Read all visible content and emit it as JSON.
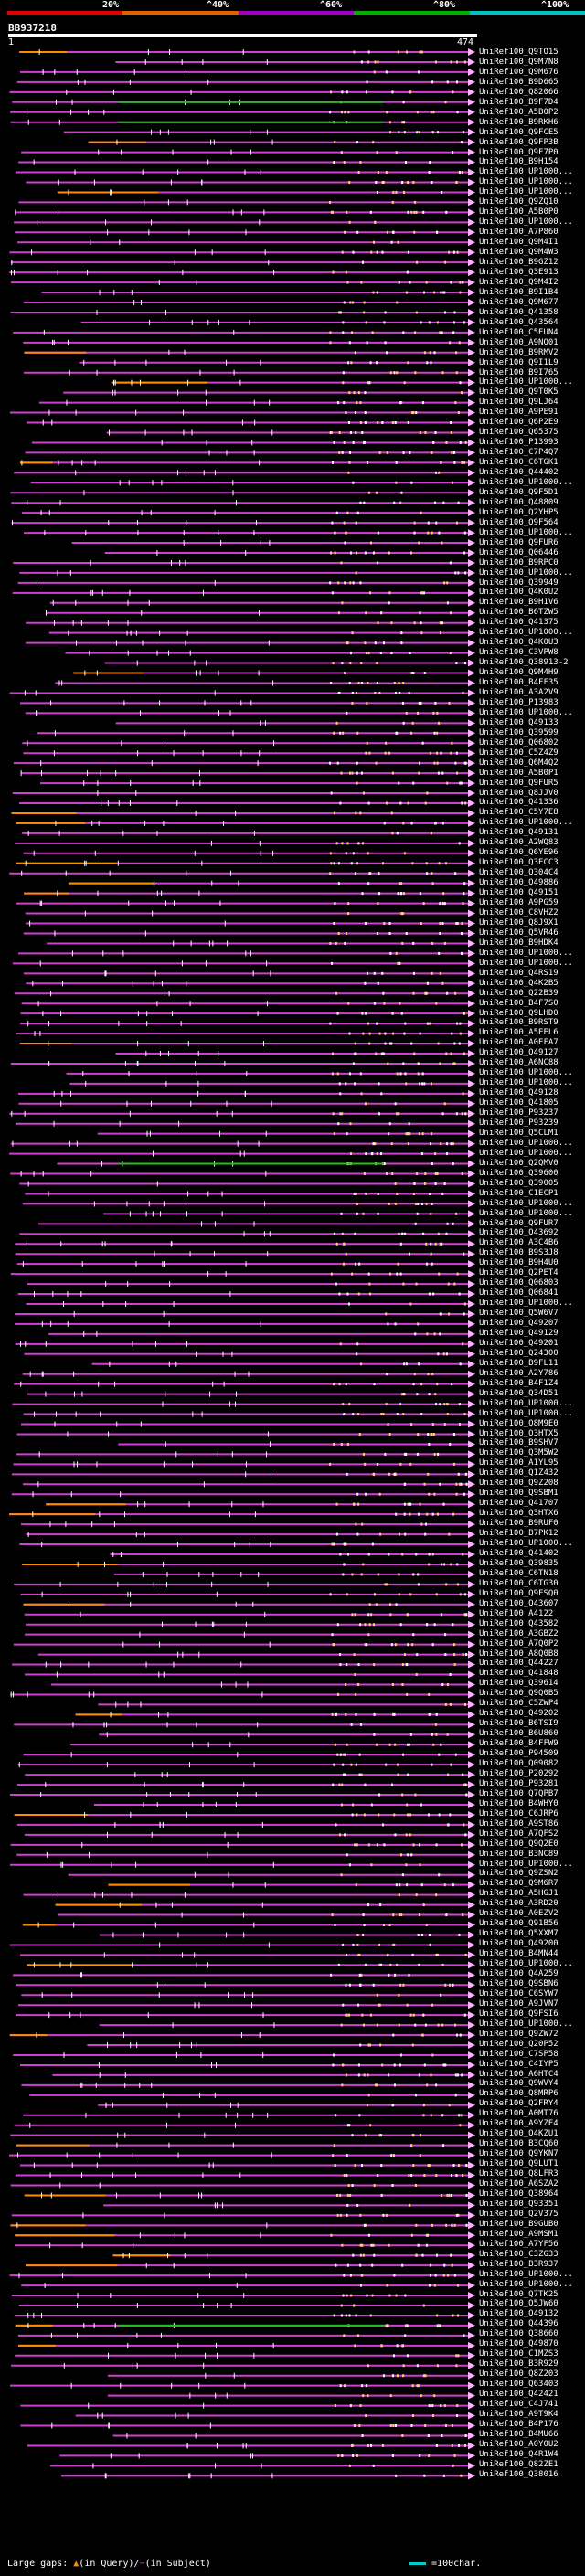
{
  "scale": {
    "colors": [
      "#e00000",
      "#e06000",
      "#a000c0",
      "#00b000",
      "#00c0c0"
    ],
    "labels": [
      "20%",
      "^40%",
      "^60%",
      "^80%",
      "^100%"
    ]
  },
  "query": {
    "id": "BB937218",
    "start": "1",
    "end": "474"
  },
  "hit_colors": {
    "hit": "#d040d0",
    "gap": "#ff8c00",
    "good": "#20c020",
    "mismatch": "#ffd080",
    "arrow": "#ffb0ff"
  },
  "hits": [
    "UniRef100_Q9TO15",
    "UniRef100_Q9M7N8",
    "UniRef100_Q9M676",
    "UniRef100_B9D665",
    "UniRef100_Q82066",
    "UniRef100_B9F7D4",
    "UniRef100_A5B0P2",
    "UniRef100_B9RKH6",
    "UniRef100_Q9FCE5",
    "UniRef100_Q9FP3B",
    "UniRef100_Q9F7P0",
    "UniRef100_B9H154",
    "UniRef100_UP1000...",
    "UniRef100_UP1000...",
    "UniRef100_UP1000...",
    "UniRef100_Q9ZQ10",
    "UniRef100_A5B0P0",
    "UniRef100_UP1000...",
    "UniRef100_A7P860",
    "UniRef100_Q9M4I1",
    "UniRef100_Q9M4W3",
    "UniRef100_B9GZ12",
    "UniRef100_Q3E913",
    "UniRef100_Q9M4I2",
    "UniRef100_B9I1B4",
    "UniRef100_Q9M677",
    "UniRef100_Q41358",
    "UniRef100_Q43564",
    "UniRef100_C5EUN4",
    "UniRef100_A9NQ01",
    "UniRef100_B9RMV2",
    "UniRef100_Q9I1L9",
    "UniRef100_B9I765",
    "UniRef100_UP1000...",
    "UniRef100_Q9T0K5",
    "UniRef100_Q9LJ64",
    "UniRef100_A9PE91",
    "UniRef100_Q6P2E9",
    "UniRef100_Q65375",
    "UniRef100_P13993",
    "UniRef100_C7P4Q7",
    "UniRef100_C6TGK1",
    "UniRef100_Q44402",
    "UniRef100_UP1000...",
    "UniRef100_Q9F5D1",
    "UniRef100_Q48809",
    "UniRef100_Q2YHP5",
    "UniRef100_Q9F564",
    "UniRef100_UP1000...",
    "UniRef100_Q9FUR6",
    "UniRef100_Q06446",
    "UniRef100_B9RPC0",
    "UniRef100_UP1000...",
    "UniRef100_Q39949",
    "UniRef100_Q4K0U2",
    "UniRef100_B9H1V6",
    "UniRef100_B6TZW5",
    "UniRef100_Q41375",
    "UniRef100_UP1000...",
    "UniRef100_Q4K0U3",
    "UniRef100_C3VPW8",
    "UniRef100_Q38913-2",
    "UniRef100_Q9M4H9",
    "UniRef100_B4FF35",
    "UniRef100_A3A2V9",
    "UniRef100_P13983",
    "UniRef100_UP1000...",
    "UniRef100_Q49133",
    "UniRef100_Q39599",
    "UniRef100_Q06802",
    "UniRef100_C5Z4Z9",
    "UniRef100_Q6M4Q2",
    "UniRef100_A5B0P1",
    "UniRef100_Q9FUR5",
    "UniRef100_Q8JJV0",
    "UniRef100_Q41336",
    "UniRef100_C5Y7E8",
    "UniRef100_UP1000...",
    "UniRef100_Q49131",
    "UniRef100_A2WQ83",
    "UniRef100_Q6YE96",
    "UniRef100_Q3ECC3",
    "UniRef100_Q304C4",
    "UniRef100_Q49886",
    "UniRef100_Q49151",
    "UniRef100_A9PG59",
    "UniRef100_C8VHZ2",
    "UniRef100_Q8J9X1",
    "UniRef100_Q5VR46",
    "UniRef100_B9HDK4",
    "UniRef100_UP1000...",
    "UniRef100_UP1000...",
    "UniRef100_Q4RS19",
    "UniRef100_Q4K2B5",
    "UniRef100_Q22B39",
    "UniRef100_B4F7S0",
    "UniRef100_Q9LHD0",
    "UniRef100_B9RST9",
    "UniRef100_A5EEL6",
    "UniRef100_A0EFA7",
    "UniRef100_Q49127",
    "UniRef100_A6NC88",
    "UniRef100_UP1000...",
    "UniRef100_UP1000...",
    "UniRef100_Q49128",
    "UniRef100_Q41805",
    "UniRef100_P93237",
    "UniRef100_P93239",
    "UniRef100_Q5CLM1",
    "UniRef100_UP1000...",
    "UniRef100_UP1000...",
    "UniRef100_Q2QMV0",
    "UniRef100_Q39600",
    "UniRef100_Q39005",
    "UniRef100_C1ECP1",
    "UniRef100_UP1000...",
    "UniRef100_UP1000...",
    "UniRef100_Q9FUR7",
    "UniRef100_Q43692",
    "UniRef100_A3C4B6",
    "UniRef100_B9S3J8",
    "UniRef100_B9H4U0",
    "UniRef100_Q2PET4",
    "UniRef100_Q06803",
    "UniRef100_Q06841",
    "UniRef100_UP1000...",
    "UniRef100_Q5W6V7",
    "UniRef100_Q49207",
    "UniRef100_Q49129",
    "UniRef100_Q49201",
    "UniRef100_Q24300",
    "UniRef100_B9FL11",
    "UniRef100_A2Y786",
    "UniRef100_B4F1Z4",
    "UniRef100_Q34D51",
    "UniRef100_UP1000...",
    "UniRef100_UP1000...",
    "UniRef100_Q8M9E0",
    "UniRef100_Q3HTX5",
    "UniRef100_B9SHV7",
    "UniRef100_Q3M5W2",
    "UniRef100_A1YL95",
    "UniRef100_Q1Z432",
    "UniRef100_Q9Z208",
    "UniRef100_Q9SBM1",
    "UniRef100_Q41707",
    "UniRef100_Q3HTX6",
    "UniRef100_B9RUF0",
    "UniRef100_B7PK12",
    "UniRef100_UP1000...",
    "UniRef100_Q41402",
    "UniRef100_Q39835",
    "UniRef100_C6TN18",
    "UniRef100_C6TG30",
    "UniRef100_Q9FSQ0",
    "UniRef100_Q43607",
    "UniRef100_A4122",
    "UniRef100_Q43582",
    "UniRef100_A3GBZ2",
    "UniRef100_A7Q0P2",
    "UniRef100_A8Q0B8",
    "UniRef100_Q44227",
    "UniRef100_Q41848",
    "UniRef100_Q39614",
    "UniRef100_Q9Q0B5",
    "UniRef100_C5ZWP4",
    "UniRef100_Q49202",
    "UniRef100_B6TSI9",
    "UniRef100_B6U860",
    "UniRef100_B4FFW9",
    "UniRef100_P94509",
    "UniRef100_Q09082",
    "UniRef100_P20292",
    "UniRef100_P93281",
    "UniRef100_Q7QPB7",
    "UniRef100_B4WHY0",
    "UniRef100_C6JRP6",
    "UniRef100_A9ST86",
    "UniRef100_A7QFS2",
    "UniRef100_Q9Q2E0",
    "UniRef100_B3NC89",
    "UniRef100_UP1000...",
    "UniRef100_Q9ZSN2",
    "UniRef100_Q9M6R7",
    "UniRef100_A5HGJ1",
    "UniRef100_A3RD20",
    "UniRef100_A0EZV2",
    "UniRef100_Q91B56",
    "UniRef100_Q5XXM7",
    "UniRef100_Q49200",
    "UniRef100_B4MN44",
    "UniRef100_UP1000...",
    "UniRef100_Q4A259",
    "UniRef100_Q9SBN6",
    "UniRef100_C6SYW7",
    "UniRef100_A9JVN7",
    "UniRef100_Q9FSI6",
    "UniRef100_UP1000...",
    "UniRef100_Q9ZW72",
    "UniRef100_Q20P52",
    "UniRef100_C7SP58",
    "UniRef100_C4IYP5",
    "UniRef100_A6HTC4",
    "UniRef100_Q9WVY4",
    "UniRef100_Q8MRP6",
    "UniRef100_Q2FRY4",
    "UniRef100_A0MT76",
    "UniRef100_A9YZE4",
    "UniRef100_Q4KZU1",
    "UniRef100_B3CQ60",
    "UniRef100_Q9YKN7",
    "UniRef100_Q9LUT1",
    "UniRef100_Q8LFR3",
    "UniRef100_A6SZA2",
    "UniRef100_Q38964",
    "UniRef100_Q93351",
    "UniRef100_Q2V375",
    "UniRef100_B9GUB0",
    "UniRef100_A9MSM1",
    "UniRef100_A7YF56",
    "UniRef100_C3ZG33",
    "UniRef100_B3R937",
    "UniRef100_UP1000...",
    "UniRef100_UP1000...",
    "UniRef100_Q7TK25",
    "UniRef100_Q5JW60",
    "UniRef100_Q49132",
    "UniRef100_Q44396",
    "UniRef100_Q38660",
    "UniRef100_Q49870",
    "UniRef100_C1MZS3",
    "UniRef100_B3R929",
    "UniRef100_Q8Z203",
    "UniRef100_Q63403",
    "UniRef100_Q42421",
    "UniRef100_C4J741",
    "UniRef100_A9T9K4",
    "UniRef100_B4P176",
    "UniRef100_B4MU66",
    "UniRef100_A0Y0U2",
    "UniRef100_Q4R1W4",
    "UniRef100_Q82ZE1",
    "UniRef100_Q38016"
  ],
  "legend": {
    "left_label": "Large gaps:",
    "left_desc": "(in Query)/",
    "left_desc2": "(in Subject)",
    "right_label": "=100char."
  }
}
